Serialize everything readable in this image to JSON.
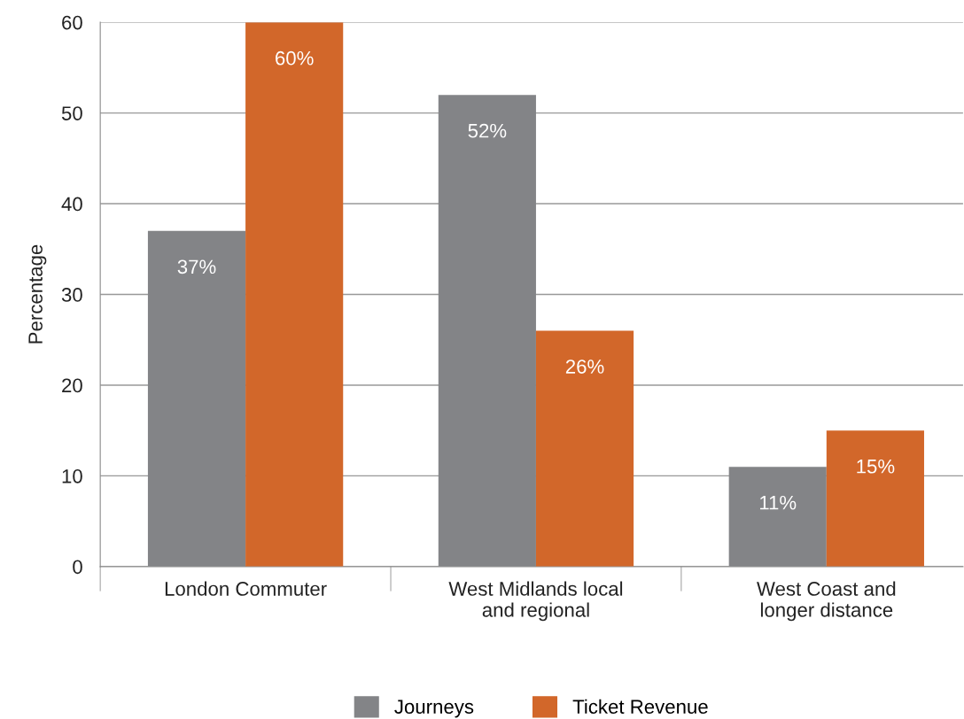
{
  "chart_data": {
    "type": "bar",
    "ylabel": "Percentage",
    "categories": [
      "London Commuter",
      "West Midlands local\nand regional",
      "West Coast and\nlonger distance"
    ],
    "series": [
      {
        "name": "Journeys",
        "color": "#838487",
        "values": [
          37,
          52,
          11
        ],
        "value_labels": [
          "37%",
          "52%",
          "11%"
        ]
      },
      {
        "name": "Ticket Revenue",
        "color": "#d2672a",
        "values": [
          60,
          26,
          15
        ],
        "value_labels": [
          "60%",
          "26%",
          "15%"
        ]
      }
    ],
    "ylim": [
      0,
      60
    ],
    "yticks": [
      0,
      10,
      20,
      30,
      40,
      50,
      60
    ],
    "grid": "y",
    "legend": "bottom"
  }
}
